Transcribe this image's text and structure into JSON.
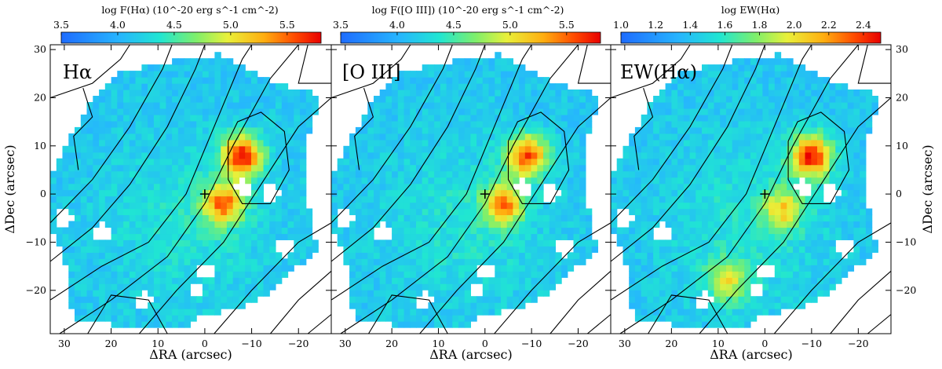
{
  "chart_data": {
    "type": "heatmap",
    "x_axis": {
      "label": "ΔRA (arcsec)",
      "range": [
        33,
        -27
      ],
      "reversed": true,
      "ticks": [
        30,
        20,
        10,
        0,
        -10,
        -20
      ]
    },
    "y_axis": {
      "label": "ΔDec (arcsec)",
      "range": [
        -29,
        31
      ],
      "ticks": [
        30,
        20,
        10,
        0,
        -10,
        -20
      ]
    },
    "center_marker": {
      "symbol": "+",
      "x": 0,
      "y": 0
    },
    "panels": [
      {
        "label": "Hα",
        "colorbar": {
          "title": "log F(Hα) (10^-20 erg s^-1 cm^-2)",
          "range": [
            3.5,
            5.8
          ],
          "ticks": [
            3.5,
            4.0,
            4.5,
            5.0,
            5.5
          ],
          "tick_labels": [
            "3.5",
            "4.0",
            "4.5",
            "5.0",
            "5.5"
          ]
        },
        "peaks": [
          {
            "x": -8,
            "y": 8,
            "level": 1.0
          },
          {
            "x": -4,
            "y": -2,
            "level": 0.8
          }
        ]
      },
      {
        "label": "[O III]",
        "colorbar": {
          "title": "log F([O III]) (10^-20 erg s^-1 cm^-2)",
          "range": [
            3.5,
            5.8
          ],
          "ticks": [
            3.5,
            4.0,
            4.5,
            5.0,
            5.5
          ],
          "tick_labels": [
            "3.5",
            "4.0",
            "4.5",
            "5.0",
            "5.5"
          ]
        },
        "peaks": [
          {
            "x": -9,
            "y": 8,
            "level": 0.9
          },
          {
            "x": -4,
            "y": -2,
            "level": 0.75
          }
        ]
      },
      {
        "label": "EW(Hα)",
        "colorbar": {
          "title": "log EW(Hα)",
          "range": [
            1.0,
            2.5
          ],
          "ticks": [
            1.0,
            1.2,
            1.4,
            1.6,
            1.8,
            2.0,
            2.2,
            2.4
          ],
          "tick_labels": [
            "1.0",
            "1.2",
            "1.4",
            "1.6",
            "1.8",
            "2.0",
            "2.2",
            "2.4"
          ]
        },
        "peaks": [
          {
            "x": -10,
            "y": 8,
            "level": 1.0
          },
          {
            "x": -4,
            "y": -3,
            "level": 0.55
          },
          {
            "x": 8,
            "y": -18,
            "level": 0.5
          }
        ]
      }
    ],
    "grid": false,
    "colormap": "jet"
  }
}
